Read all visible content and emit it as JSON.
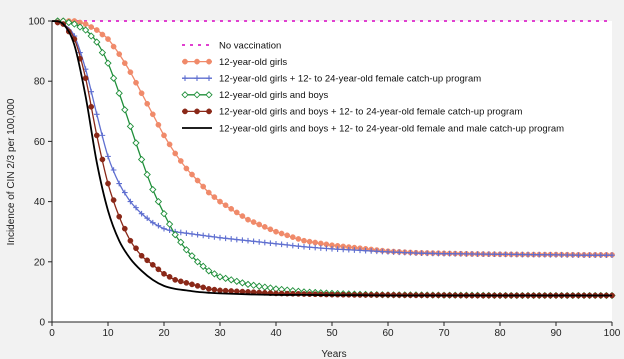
{
  "chart_data": {
    "type": "line",
    "title": "",
    "xlabel": "Years",
    "ylabel": "Incidence of CIN 2/3 per 100,000",
    "xlim": [
      0,
      100
    ],
    "ylim": [
      0,
      100
    ],
    "x_ticks": [
      0,
      10,
      20,
      30,
      40,
      50,
      60,
      70,
      80,
      90,
      100
    ],
    "y_ticks": [
      0,
      20,
      40,
      60,
      80,
      100
    ],
    "grid": false,
    "legend_position": "upper-right (inside plot)",
    "x": [
      0,
      2,
      4,
      6,
      8,
      10,
      12,
      14,
      16,
      18,
      20,
      22,
      24,
      26,
      28,
      30,
      35,
      40,
      45,
      50,
      55,
      60,
      65,
      70,
      75,
      80,
      85,
      90,
      95,
      100
    ],
    "series": [
      {
        "name": "No vaccination",
        "color": "#e040d0",
        "style": "dashed",
        "marker": "none",
        "values": [
          100,
          100,
          100,
          100,
          100,
          100,
          100,
          100,
          100,
          100,
          100,
          100,
          100,
          100,
          100,
          100,
          100,
          100,
          100,
          100,
          100,
          100,
          100,
          100,
          100,
          100,
          100,
          100,
          100,
          100
        ]
      },
      {
        "name": "12-year-old girls",
        "color": "#f08a6a",
        "style": "solid",
        "marker": "circle",
        "values": [
          100,
          100,
          100,
          99,
          97,
          94,
          89,
          83,
          76,
          69,
          62,
          56,
          51,
          47,
          43,
          40,
          34,
          30,
          27,
          25.5,
          24.5,
          23.5,
          23,
          22.8,
          22.6,
          22.5,
          22.4,
          22.4,
          22.3,
          22.3
        ]
      },
      {
        "name": "12-year-old girls + 12- to 24-year-old female catch-up program",
        "color": "#5f6fd0",
        "style": "solid",
        "marker": "plus",
        "values": [
          100,
          99,
          95,
          84,
          69,
          55,
          46,
          40,
          36,
          33,
          31,
          30,
          29.5,
          29,
          28.5,
          28,
          27,
          26,
          25,
          24.3,
          23.8,
          23.3,
          22.9,
          22.7,
          22.6,
          22.5,
          22.4,
          22.3,
          22.2,
          22.2
        ]
      },
      {
        "name": "12-year-old girls and boys",
        "color": "#1f8f3a",
        "style": "solid",
        "marker": "diamond",
        "values": [
          100,
          100,
          99,
          97,
          93,
          86,
          76,
          65,
          54,
          44,
          36,
          29,
          24,
          20,
          17,
          15,
          12.5,
          11,
          10,
          9.5,
          9.2,
          9,
          9,
          8.9,
          8.9,
          8.8,
          8.8,
          8.8,
          8.8,
          8.8
        ]
      },
      {
        "name": "12-year-old girls and boys + 12- to 24-year-old female catch-up program",
        "color": "#8a2818",
        "style": "solid",
        "marker": "circle",
        "values": [
          100,
          99,
          94,
          81,
          62,
          46,
          35,
          27,
          22,
          19,
          16,
          14,
          13,
          12,
          11,
          10.5,
          10,
          9.5,
          9.3,
          9.1,
          9,
          9,
          8.9,
          8.9,
          8.8,
          8.8,
          8.8,
          8.8,
          8.8,
          8.8
        ]
      },
      {
        "name": "12-year-old girls and boys + 12- to 24-year-old female and male catch-up program",
        "color": "#000000",
        "style": "solid",
        "marker": "none",
        "values": [
          100,
          99,
          92,
          75,
          53,
          37,
          27,
          21,
          17,
          14,
          12,
          11,
          10.5,
          10,
          9.7,
          9.5,
          9.2,
          9,
          9,
          8.9,
          8.9,
          8.8,
          8.8,
          8.8,
          8.8,
          8.8,
          8.8,
          8.8,
          8.8,
          8.8
        ]
      }
    ]
  }
}
